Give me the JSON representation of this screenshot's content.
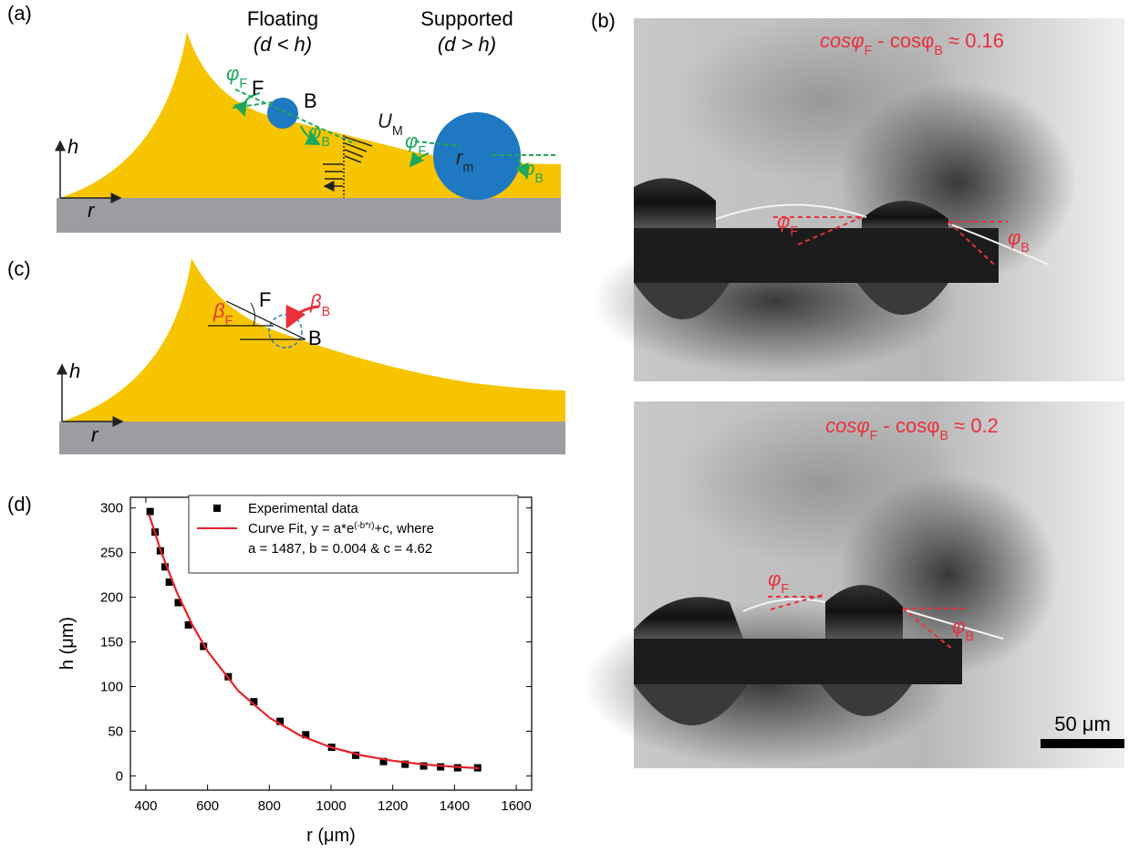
{
  "panel_labels": [
    "(a)",
    "(b)",
    "(c)",
    "(d)"
  ],
  "panel_a": {
    "floating": "Floating",
    "floating_cond": "(d < h)",
    "supported": "Supported",
    "supported_cond": "(d > h)",
    "F": "F",
    "B": "B",
    "phi_F": [
      "φ",
      "F"
    ],
    "phi_B": [
      "φ",
      "B"
    ],
    "U_M": [
      "U",
      "M"
    ],
    "r_m": [
      "r",
      "m"
    ],
    "phi_F2": [
      "φ",
      "F"
    ],
    "phi_B2": [
      "φ",
      "B"
    ],
    "h": "h",
    "r": "r"
  },
  "panel_c": {
    "F": "F",
    "B": "B",
    "beta_F": [
      "β",
      "F"
    ],
    "beta_B": [
      "β",
      "B"
    ],
    "h": "h",
    "r": "r"
  },
  "panel_b": {
    "top_caption": [
      "cosφ",
      "F",
      " - cosφ",
      "B",
      " ≈ 0.16"
    ],
    "top_phi_F": [
      "φ",
      "F"
    ],
    "top_phi_B": [
      "φ",
      "B"
    ],
    "bottom_caption": [
      "cosφ",
      "F",
      " - cosφ",
      "B",
      " ≈ 0.2"
    ],
    "bottom_phi_F": [
      "φ",
      "F"
    ],
    "bottom_phi_B": [
      "φ",
      "B"
    ],
    "scale_bar": "50 μm"
  },
  "chart_data": {
    "type": "scatter-fit",
    "xlabel": "r (μm)",
    "ylabel": "h (μm)",
    "xlim": [
      350,
      1650
    ],
    "ylim": [
      -16,
      312
    ],
    "xticks": [
      400,
      600,
      800,
      1000,
      1200,
      1400,
      1600
    ],
    "yticks": [
      0,
      50,
      100,
      150,
      200,
      250,
      300
    ],
    "series": [
      {
        "name": "Experimental data",
        "color": "#000000",
        "marker": "square",
        "x": [
          414,
          430,
          447,
          462,
          476,
          505,
          538,
          587,
          667,
          750,
          835,
          918,
          1002,
          1080,
          1170,
          1240,
          1300,
          1355,
          1410,
          1475
        ],
        "values": [
          296,
          273,
          252,
          234,
          217,
          194,
          169,
          145,
          111,
          83,
          61,
          46,
          32,
          23,
          16,
          13,
          11,
          10,
          9,
          9
        ]
      },
      {
        "name": [
          "Curve Fit, y = a*e",
          "(-b*r)",
          "+c, where"
        ],
        "color": "#e8202a",
        "marker": "line",
        "x": [
          410,
          450,
          500,
          550,
          600,
          700,
          800,
          900,
          1000,
          1100,
          1200,
          1300,
          1400,
          1480
        ],
        "values": [
          293.1,
          250.4,
          205.9,
          169.4,
          139.5,
          95.0,
          65.2,
          45.2,
          31.9,
          22.9,
          16.9,
          12.8,
          10.1,
          8.6
        ]
      }
    ],
    "legend_note": "a = 1487, b = 0.004 & c = 4.62"
  }
}
